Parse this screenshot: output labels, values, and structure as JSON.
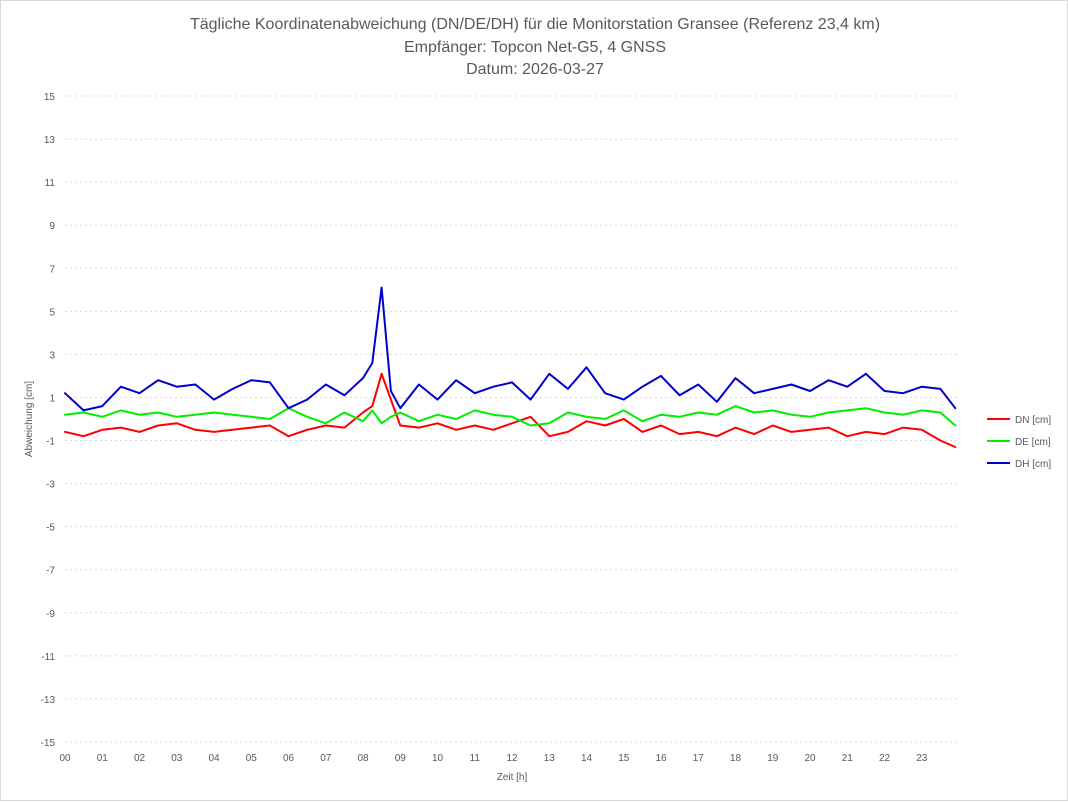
{
  "chart_data": {
    "type": "line",
    "title": "Tägliche Koordinatenabweichung (DN/DE/DH) für die Monitorstation Gransee (Referenz 23,4 km)",
    "subtitle": "Empfänger: Topcon Net-G5, 4 GNSS",
    "date_line": "Datum: 2026-03-27",
    "xlabel": "Zeit [h]",
    "ylabel": "Abweichung [cm]",
    "ylim": [
      -15,
      15
    ],
    "xlim": [
      0,
      24
    ],
    "y_ticks": [
      "15",
      "13",
      "11",
      "9",
      "7",
      "5",
      "3",
      "1",
      "-1",
      "-3",
      "-5",
      "-7",
      "-9",
      "-11",
      "-13",
      "-15"
    ],
    "x_ticks": [
      "00",
      "01",
      "02",
      "03",
      "04",
      "05",
      "06",
      "07",
      "08",
      "09",
      "10",
      "11",
      "12",
      "13",
      "14",
      "15",
      "16",
      "17",
      "18",
      "19",
      "20",
      "21",
      "22",
      "23"
    ],
    "grid": true,
    "legend_position": "right",
    "x": [
      0.0,
      0.5,
      1.0,
      1.5,
      2.0,
      2.5,
      3.0,
      3.5,
      4.0,
      4.5,
      5.0,
      5.5,
      6.0,
      6.5,
      7.0,
      7.5,
      8.0,
      8.25,
      8.5,
      8.75,
      9.0,
      9.5,
      10.0,
      10.5,
      11.0,
      11.5,
      12.0,
      12.5,
      13.0,
      13.5,
      14.0,
      14.5,
      15.0,
      15.5,
      16.0,
      16.5,
      17.0,
      17.5,
      18.0,
      18.5,
      19.0,
      19.5,
      20.0,
      20.5,
      21.0,
      21.5,
      22.0,
      22.5,
      23.0,
      23.5,
      23.9
    ],
    "series": [
      {
        "name": "DN [cm]",
        "color": "#ff0000",
        "values": [
          -0.6,
          -0.8,
          -0.5,
          -0.4,
          -0.6,
          -0.3,
          -0.2,
          -0.5,
          -0.6,
          -0.5,
          -0.4,
          -0.3,
          -0.8,
          -0.5,
          -0.3,
          -0.4,
          0.3,
          0.6,
          2.1,
          0.9,
          -0.3,
          -0.4,
          -0.2,
          -0.5,
          -0.3,
          -0.5,
          -0.2,
          0.1,
          -0.8,
          -0.6,
          -0.1,
          -0.3,
          0.0,
          -0.6,
          -0.3,
          -0.7,
          -0.6,
          -0.8,
          -0.4,
          -0.7,
          -0.3,
          -0.6,
          -0.5,
          -0.4,
          -0.8,
          -0.6,
          -0.7,
          -0.4,
          -0.5,
          -1.0,
          -1.3
        ]
      },
      {
        "name": "DE [cm]",
        "color": "#00ee00",
        "values": [
          0.2,
          0.3,
          0.1,
          0.4,
          0.2,
          0.3,
          0.1,
          0.2,
          0.3,
          0.2,
          0.1,
          0.0,
          0.5,
          0.1,
          -0.2,
          0.3,
          -0.1,
          0.4,
          -0.2,
          0.1,
          0.3,
          -0.1,
          0.2,
          0.0,
          0.4,
          0.2,
          0.1,
          -0.3,
          -0.2,
          0.3,
          0.1,
          0.0,
          0.4,
          -0.1,
          0.2,
          0.1,
          0.3,
          0.2,
          0.6,
          0.3,
          0.4,
          0.2,
          0.1,
          0.3,
          0.4,
          0.5,
          0.3,
          0.2,
          0.4,
          0.3,
          -0.3
        ]
      },
      {
        "name": "DH [cm]",
        "color": "#0000cc",
        "values": [
          1.2,
          0.4,
          0.6,
          1.5,
          1.2,
          1.8,
          1.5,
          1.6,
          0.9,
          1.4,
          1.8,
          1.7,
          0.5,
          0.9,
          1.6,
          1.1,
          1.9,
          2.6,
          6.1,
          1.3,
          0.5,
          1.6,
          0.9,
          1.8,
          1.2,
          1.5,
          1.7,
          0.9,
          2.1,
          1.4,
          2.4,
          1.2,
          0.9,
          1.5,
          2.0,
          1.1,
          1.6,
          0.8,
          1.9,
          1.2,
          1.4,
          1.6,
          1.3,
          1.8,
          1.5,
          2.1,
          1.3,
          1.2,
          1.5,
          1.4,
          0.5
        ]
      }
    ]
  }
}
